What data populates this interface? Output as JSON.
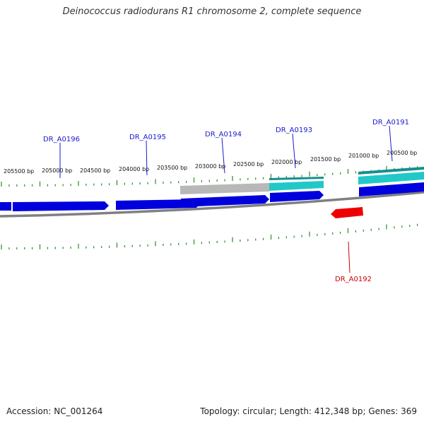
{
  "title": "Deinococcus radiodurans R1 chromosome 2, complete sequence",
  "footer": {
    "accession": "Accession: NC_001264",
    "summary": "Topology: circular; Length: 412,348 bp; Genes: 369"
  },
  "colors": {
    "forward_gene": "#0000dd",
    "reverse_gene": "#ee0000",
    "highlight_teal": "#22c8c8",
    "highlight_grey": "#b8b8b8",
    "backbone": "#808080",
    "tick": "#2a8a2a",
    "gene_label": "#1a1acc",
    "gene_label_reverse": "#cc0000"
  },
  "ruler_ticks": [
    "205500 bp",
    "205000 bp",
    "204500 bp",
    "204000 bp",
    "203500 bp",
    "203000 bp",
    "202500 bp",
    "202000 bp",
    "201500 bp",
    "201000 bp",
    "200500 bp"
  ],
  "genes": [
    {
      "name": "DR_A0196",
      "strand": "forward"
    },
    {
      "name": "DR_A0195",
      "strand": "forward"
    },
    {
      "name": "DR_A0194",
      "strand": "forward"
    },
    {
      "name": "DR_A0193",
      "strand": "forward"
    },
    {
      "name": "DR_A0191",
      "strand": "forward"
    },
    {
      "name": "DR_A0192",
      "strand": "reverse"
    }
  ]
}
